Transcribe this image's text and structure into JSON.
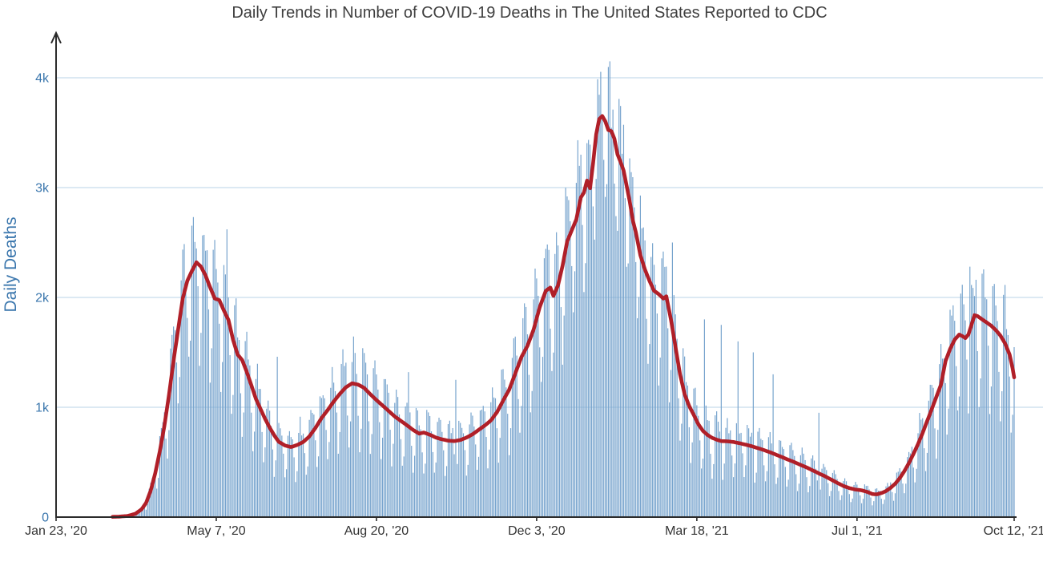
{
  "page": {
    "title": "Daily Trends in Number of COVID-19 Deaths in The United States Reported to CDC"
  },
  "chart_data": {
    "type": "bar",
    "title": "Daily Trends in Number of COVID-19 Deaths in The United States Reported to CDC",
    "xlabel": "",
    "ylabel": "Daily Deaths",
    "x_start_date": "Jan 23, '20",
    "x_end_date": "Oct 12, '21",
    "x_total_days": 628,
    "grid": "horizontal",
    "legend_position": "none",
    "ylim": [
      0,
      4380
    ],
    "x_ticks": [
      {
        "day": 0,
        "label": "Jan 23, '20"
      },
      {
        "day": 105,
        "label": "May 7, '20"
      },
      {
        "day": 210,
        "label": "Aug 20, '20"
      },
      {
        "day": 315,
        "label": "Dec 3, '20"
      },
      {
        "day": 420,
        "label": "Mar 18, '21"
      },
      {
        "day": 525,
        "label": "Jul 1, '21"
      },
      {
        "day": 628,
        "label": "Oct 12, '21"
      }
    ],
    "y_ticks": [
      {
        "value": 0,
        "label": "0"
      },
      {
        "value": 1000,
        "label": "1k"
      },
      {
        "value": 2000,
        "label": "2k"
      },
      {
        "value": 3000,
        "label": "3k"
      },
      {
        "value": 4000,
        "label": "4k"
      }
    ],
    "series": [
      {
        "name": "Daily Deaths",
        "type": "bar",
        "color": "#76a3cd"
      },
      {
        "name": "7-Day Moving Average",
        "type": "line",
        "color": "#b01f28",
        "width": 4.6
      }
    ],
    "moving_average_anchors": [
      [
        0,
        0
      ],
      [
        34,
        1
      ],
      [
        41,
        4
      ],
      [
        47,
        11
      ],
      [
        52,
        30
      ],
      [
        56,
        70
      ],
      [
        59,
        130
      ],
      [
        62,
        240
      ],
      [
        65,
        400
      ],
      [
        68,
        600
      ],
      [
        71,
        830
      ],
      [
        74,
        1110
      ],
      [
        77,
        1420
      ],
      [
        80,
        1710
      ],
      [
        83,
        1990
      ],
      [
        86,
        2150
      ],
      [
        89,
        2240
      ],
      [
        92,
        2320
      ],
      [
        95,
        2280
      ],
      [
        98,
        2200
      ],
      [
        101,
        2090
      ],
      [
        104,
        1990
      ],
      [
        107,
        1975
      ],
      [
        110,
        1880
      ],
      [
        113,
        1795
      ],
      [
        116,
        1615
      ],
      [
        119,
        1480
      ],
      [
        122,
        1430
      ],
      [
        125,
        1320
      ],
      [
        128,
        1200
      ],
      [
        131,
        1075
      ],
      [
        134,
        985
      ],
      [
        137,
        895
      ],
      [
        140,
        815
      ],
      [
        143,
        745
      ],
      [
        146,
        685
      ],
      [
        150,
        652
      ],
      [
        154,
        638
      ],
      [
        158,
        656
      ],
      [
        162,
        684
      ],
      [
        166,
        734
      ],
      [
        170,
        812
      ],
      [
        174,
        902
      ],
      [
        178,
        974
      ],
      [
        182,
        1052
      ],
      [
        186,
        1122
      ],
      [
        190,
        1182
      ],
      [
        194,
        1218
      ],
      [
        198,
        1206
      ],
      [
        202,
        1176
      ],
      [
        206,
        1118
      ],
      [
        210,
        1066
      ],
      [
        214,
        1016
      ],
      [
        218,
        966
      ],
      [
        222,
        916
      ],
      [
        226,
        876
      ],
      [
        230,
        836
      ],
      [
        234,
        794
      ],
      [
        238,
        760
      ],
      [
        241,
        770
      ],
      [
        245,
        750
      ],
      [
        249,
        724
      ],
      [
        253,
        708
      ],
      [
        257,
        696
      ],
      [
        261,
        692
      ],
      [
        265,
        702
      ],
      [
        269,
        724
      ],
      [
        273,
        754
      ],
      [
        277,
        794
      ],
      [
        281,
        834
      ],
      [
        285,
        880
      ],
      [
        289,
        955
      ],
      [
        293,
        1060
      ],
      [
        297,
        1160
      ],
      [
        301,
        1307
      ],
      [
        305,
        1457
      ],
      [
        309,
        1560
      ],
      [
        313,
        1707
      ],
      [
        317,
        1910
      ],
      [
        321,
        2060
      ],
      [
        324,
        2090
      ],
      [
        326,
        2014
      ],
      [
        329,
        2110
      ],
      [
        332,
        2290
      ],
      [
        335,
        2510
      ],
      [
        338,
        2610
      ],
      [
        341,
        2710
      ],
      [
        344,
        2910
      ],
      [
        346,
        2954
      ],
      [
        348,
        3064
      ],
      [
        350,
        2994
      ],
      [
        352,
        3224
      ],
      [
        354,
        3484
      ],
      [
        356,
        3624
      ],
      [
        358,
        3652
      ],
      [
        360,
        3604
      ],
      [
        362,
        3524
      ],
      [
        364,
        3514
      ],
      [
        366,
        3444
      ],
      [
        368,
        3304
      ],
      [
        370,
        3234
      ],
      [
        372,
        3154
      ],
      [
        374,
        3014
      ],
      [
        376,
        2874
      ],
      [
        378,
        2704
      ],
      [
        380,
        2594
      ],
      [
        383,
        2384
      ],
      [
        386,
        2254
      ],
      [
        389,
        2150
      ],
      [
        392,
        2060
      ],
      [
        395,
        2030
      ],
      [
        398,
        1990
      ],
      [
        400,
        2010
      ],
      [
        403,
        1800
      ],
      [
        406,
        1550
      ],
      [
        409,
        1300
      ],
      [
        412,
        1120
      ],
      [
        415,
        1010
      ],
      [
        418,
        930
      ],
      [
        421,
        845
      ],
      [
        424,
        785
      ],
      [
        427,
        748
      ],
      [
        430,
        722
      ],
      [
        433,
        705
      ],
      [
        436,
        692
      ],
      [
        440,
        690
      ],
      [
        444,
        684
      ],
      [
        448,
        672
      ],
      [
        452,
        660
      ],
      [
        456,
        645
      ],
      [
        460,
        628
      ],
      [
        464,
        610
      ],
      [
        468,
        590
      ],
      [
        472,
        568
      ],
      [
        476,
        545
      ],
      [
        480,
        522
      ],
      [
        484,
        500
      ],
      [
        488,
        475
      ],
      [
        492,
        452
      ],
      [
        496,
        425
      ],
      [
        500,
        398
      ],
      [
        504,
        372
      ],
      [
        508,
        342
      ],
      [
        512,
        312
      ],
      [
        516,
        284
      ],
      [
        520,
        264
      ],
      [
        524,
        251
      ],
      [
        528,
        244
      ],
      [
        532,
        228
      ],
      [
        535,
        210
      ],
      [
        538,
        207
      ],
      [
        541,
        219
      ],
      [
        544,
        237
      ],
      [
        547,
        266
      ],
      [
        550,
        304
      ],
      [
        553,
        355
      ],
      [
        556,
        418
      ],
      [
        559,
        492
      ],
      [
        562,
        575
      ],
      [
        565,
        665
      ],
      [
        568,
        765
      ],
      [
        571,
        875
      ],
      [
        574,
        985
      ],
      [
        577,
        1095
      ],
      [
        580,
        1205
      ],
      [
        583,
        1420
      ],
      [
        586,
        1530
      ],
      [
        589,
        1615
      ],
      [
        592,
        1662
      ],
      [
        594,
        1648
      ],
      [
        596,
        1630
      ],
      [
        598,
        1662
      ],
      [
        600,
        1750
      ],
      [
        602,
        1838
      ],
      [
        604,
        1830
      ],
      [
        607,
        1800
      ],
      [
        610,
        1772
      ],
      [
        613,
        1742
      ],
      [
        616,
        1702
      ],
      [
        619,
        1652
      ],
      [
        622,
        1582
      ],
      [
        625,
        1480
      ],
      [
        627,
        1352
      ],
      [
        628,
        1272
      ]
    ],
    "bar_weekly_factors": [
      1.18,
      1.12,
      0.82,
      0.52,
      0.68,
      1.22,
      1.28
    ],
    "bar_spikes": {
      "112": 2620,
      "145": 1460,
      "231": 1320,
      "262": 1250,
      "404": 2500,
      "425": 1800,
      "436": 1750,
      "447": 1600,
      "457": 1500,
      "470": 1300,
      "500": 950,
      "599": 2280
    },
    "bar_max_value": 4150
  },
  "colors": {
    "background": "#ffffff",
    "axis": "#2b2b2b",
    "gridline": "#c7dcec",
    "title_text": "#3f3f3f",
    "y_label_text": "#3a76ad",
    "x_label_text": "#333333",
    "bar": "#76a3cd",
    "line": "#b01f28"
  }
}
